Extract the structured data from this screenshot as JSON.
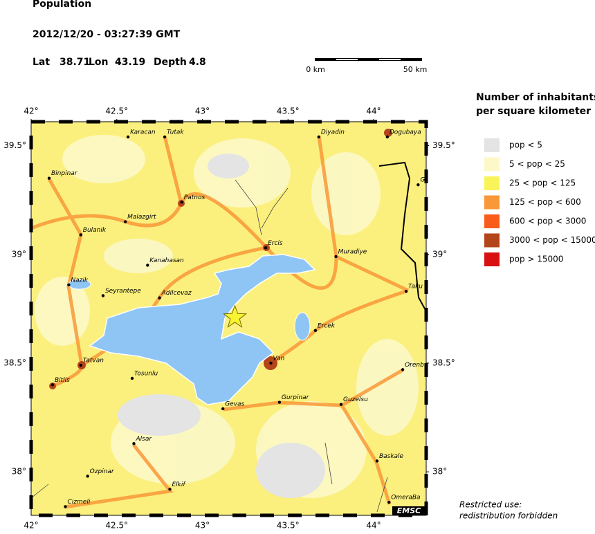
{
  "header": {
    "title": "Population",
    "datetime": "2012/12/20 - 03:27:39 GMT",
    "lat": {
      "label": "Lat",
      "value": 38.71
    },
    "lon": {
      "label": "Lon",
      "value": 43.19
    },
    "depth": {
      "label": "Depth",
      "value": 4.8
    }
  },
  "scale_bar": {
    "start": "0 km",
    "end": "50 km"
  },
  "legend": {
    "title": [
      "Number of inhabitants",
      "per square kilometer"
    ],
    "items": [
      {
        "label": "pop < 5",
        "color": "#e4e4e4"
      },
      {
        "label": "5 < pop < 25",
        "color": "#fcf8c8"
      },
      {
        "label": "25 < pop < 125",
        "color": "#f8f45a"
      },
      {
        "label": "125 < pop < 600",
        "color": "#f99838"
      },
      {
        "label": "600 < pop < 3000",
        "color": "#fa5c1c"
      },
      {
        "label": "3000 < pop < 15000",
        "color": "#b4441a"
      },
      {
        "label": "pop > 15000",
        "color": "#d81010"
      }
    ]
  },
  "map": {
    "xlim": [
      42,
      44.307
    ],
    "ylim": [
      37.8,
      39.61
    ],
    "xticks": [
      {
        "value": 42,
        "label": "42°"
      },
      {
        "value": 42.5,
        "label": "42.5°"
      },
      {
        "value": 43,
        "label": "43°"
      },
      {
        "value": 43.5,
        "label": "43.5°"
      },
      {
        "value": 44,
        "label": "44°"
      }
    ],
    "yticks": [
      {
        "value": 38,
        "label": "38°"
      },
      {
        "value": 38.5,
        "label": "38.5°"
      },
      {
        "value": 39,
        "label": "39°"
      },
      {
        "value": 39.5,
        "label": "39.5°"
      }
    ],
    "cities": [
      {
        "name": "Karacan",
        "lon": 42.566,
        "lat": 39.54
      },
      {
        "name": "Tutak",
        "lon": 42.78,
        "lat": 39.54
      },
      {
        "name": "Diyadin",
        "lon": 43.68,
        "lat": 39.54
      },
      {
        "name": "Dogubaya",
        "lon": 44.08,
        "lat": 39.54
      },
      {
        "name": "Binpinar",
        "lon": 42.105,
        "lat": 39.35
      },
      {
        "name": "G",
        "lon": 44.26,
        "lat": 39.32
      },
      {
        "name": "Patnos",
        "lon": 42.88,
        "lat": 39.24
      },
      {
        "name": "Malazgirt",
        "lon": 42.55,
        "lat": 39.15
      },
      {
        "name": "Bulanik",
        "lon": 42.29,
        "lat": 39.09
      },
      {
        "name": "Ercis",
        "lon": 43.37,
        "lat": 39.03
      },
      {
        "name": "Muradiye",
        "lon": 43.78,
        "lat": 38.99
      },
      {
        "name": "Kanahasan",
        "lon": 42.68,
        "lat": 38.95
      },
      {
        "name": "Nazik",
        "lon": 42.22,
        "lat": 38.86
      },
      {
        "name": "Seyrantepe",
        "lon": 42.42,
        "lat": 38.81
      },
      {
        "name": "Adilcevaz",
        "lon": 42.75,
        "lat": 38.8
      },
      {
        "name": "Taku",
        "lon": 44.19,
        "lat": 38.83
      },
      {
        "name": "Ercek",
        "lon": 43.66,
        "lat": 38.65
      },
      {
        "name": "Van",
        "lon": 43.4,
        "lat": 38.5
      },
      {
        "name": "Orenb",
        "lon": 44.17,
        "lat": 38.47
      },
      {
        "name": "Tatvan",
        "lon": 42.29,
        "lat": 38.49
      },
      {
        "name": "Bitlis",
        "lon": 42.125,
        "lat": 38.4
      },
      {
        "name": "Tosunlu",
        "lon": 42.59,
        "lat": 38.43
      },
      {
        "name": "Gurpinar",
        "lon": 43.45,
        "lat": 38.32
      },
      {
        "name": "Guzelsu",
        "lon": 43.81,
        "lat": 38.31
      },
      {
        "name": "Gevas",
        "lon": 43.12,
        "lat": 38.29
      },
      {
        "name": "Alsar",
        "lon": 42.6,
        "lat": 38.13
      },
      {
        "name": "Baskale",
        "lon": 44.02,
        "lat": 38.05
      },
      {
        "name": "Ozpinar",
        "lon": 42.33,
        "lat": 37.98
      },
      {
        "name": "Elkif",
        "lon": 42.81,
        "lat": 37.92
      },
      {
        "name": "Cizmeli",
        "lon": 42.2,
        "lat": 37.84
      },
      {
        "name": "OmeraBa",
        "lon": 44.09,
        "lat": 37.86
      }
    ],
    "logo": "EMSC"
  },
  "footer": [
    "Restricted use:",
    "redistribution forbidden"
  ]
}
